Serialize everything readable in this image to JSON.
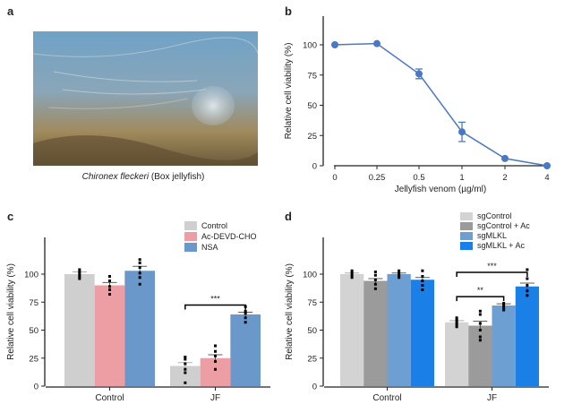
{
  "panel_labels": {
    "a": "a",
    "b": "b",
    "c": "c",
    "d": "d"
  },
  "photo": {
    "caption_species": "Chironex fleckeri",
    "caption_common": " (Box jellyfish)"
  },
  "chart_data": [
    {
      "panel": "b",
      "type": "line",
      "categories": [
        "0",
        "0.25",
        "0.5",
        "1",
        "2",
        "4"
      ],
      "values": [
        100,
        101,
        76,
        28,
        6,
        0
      ],
      "errors": [
        0,
        0,
        4,
        8,
        0,
        0
      ],
      "xlabel": "Jellyfish venom (µg/ml)",
      "ylabel": "Relative cell viability (%)",
      "yticks": [
        "0",
        "25",
        "50",
        "75",
        "100"
      ],
      "ylim": [
        0,
        115
      ],
      "color": "#4a78c4"
    },
    {
      "panel": "c",
      "type": "bar",
      "categories": [
        "Control",
        "JF"
      ],
      "series": [
        {
          "name": "Control",
          "color": "#d0cfd0",
          "values": [
            100,
            18
          ],
          "errors": [
            2,
            3
          ],
          "points": [
            [
              96,
              98,
              100,
              102,
              104
            ],
            [
              3,
              12,
              15,
              20,
              24,
              26
            ]
          ]
        },
        {
          "name": "Ac-DEVD-CHO",
          "color": "#ec9ea4",
          "values": [
            90,
            25
          ],
          "errors": [
            2.5,
            3
          ],
          "points": [
            [
              82,
              86,
              89,
              94,
              98
            ],
            [
              15,
              22,
              27,
              31,
              36
            ]
          ]
        },
        {
          "name": "NSA",
          "color": "#6a98cb",
          "values": [
            103,
            64
          ],
          "errors": [
            4,
            2
          ],
          "points": [
            [
              91,
              97,
              101,
              106,
              110,
              113
            ],
            [
              57,
              61,
              65,
              67,
              71
            ]
          ]
        }
      ],
      "significance": [
        {
          "group": "JF",
          "from": 0,
          "to": 2,
          "label": "***"
        }
      ],
      "ylabel": "Relative cell viability (%)",
      "yticks": [
        "0",
        "25",
        "50",
        "75",
        "100"
      ],
      "ylim": [
        0,
        125
      ],
      "legend": "top-right"
    },
    {
      "panel": "d",
      "type": "bar",
      "categories": [
        "Control",
        "JF"
      ],
      "series": [
        {
          "name": "sgControl",
          "color": "#d3d3d3",
          "values": [
            100,
            57
          ],
          "errors": [
            1,
            1.5
          ],
          "points": [
            [
              97,
              99,
              101,
              103
            ],
            [
              53,
              55,
              57,
              59,
              61
            ]
          ]
        },
        {
          "name": "sgControl + Ac",
          "color": "#9b9b9b",
          "values": [
            94,
            54
          ],
          "errors": [
            2,
            4
          ],
          "points": [
            [
              87,
              91,
              95,
              99,
              102
            ],
            [
              41,
              44,
              50,
              56,
              64,
              67
            ]
          ]
        },
        {
          "name": "sgMLKL",
          "color": "#6e9fd2",
          "values": [
            100,
            72
          ],
          "errors": [
            1,
            1.5
          ],
          "points": [
            [
              97,
              99,
              101,
              103
            ],
            [
              68,
              70,
              72,
              74
            ]
          ]
        },
        {
          "name": "sgMLKL + Ac",
          "color": "#1b7fe8",
          "values": [
            95,
            89
          ],
          "errors": [
            2,
            3
          ],
          "points": [
            [
              86,
              90,
              94,
              98,
              103
            ],
            [
              81,
              85,
              90,
              96,
              104
            ]
          ]
        }
      ],
      "significance": [
        {
          "group": "JF",
          "from": 0,
          "to": 2,
          "label": "**"
        },
        {
          "group": "JF",
          "from": 0,
          "to": 3,
          "label": "***"
        }
      ],
      "ylabel": "Relative cell viability (%)",
      "yticks": [
        "0",
        "25",
        "50",
        "75",
        "100"
      ],
      "ylim": [
        0,
        125
      ],
      "legend": "top-right"
    }
  ]
}
